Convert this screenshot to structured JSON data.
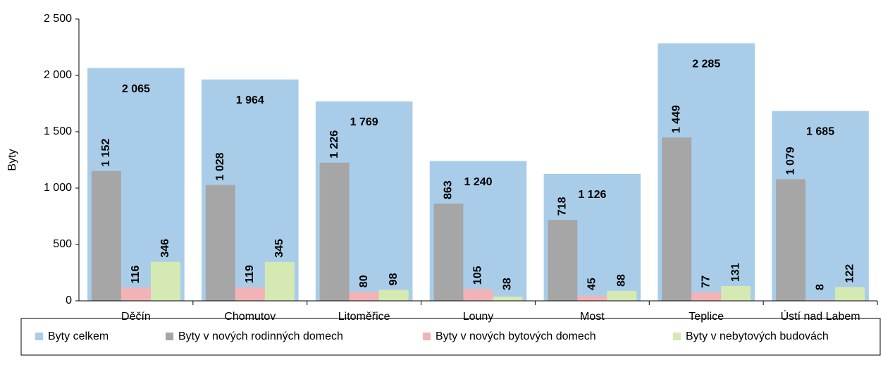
{
  "chart_data": {
    "type": "bar",
    "y_label": "Byty",
    "categories": [
      "Děčín",
      "Chomutov",
      "Litoměřice",
      "Louny",
      "Most",
      "Teplice",
      "Ústí nad Labem"
    ],
    "series": [
      {
        "name": "Byty celkem",
        "color": "#a9cde9",
        "values": [
          2065,
          1964,
          1769,
          1240,
          1126,
          2285,
          1685
        ],
        "value_labels": [
          "2 065",
          "1 964",
          "1 769",
          "1 240",
          "1 126",
          "2 285",
          "1 685"
        ]
      },
      {
        "name": "Byty v nových rodinných domech",
        "color": "#a6a6a6",
        "values": [
          1152,
          1028,
          1226,
          863,
          718,
          1449,
          1079
        ],
        "value_labels": [
          "1 152",
          "1 028",
          "1 226",
          "863",
          "718",
          "1 449",
          "1 079"
        ]
      },
      {
        "name": "Byty v nových bytových domech",
        "color": "#f2b3b6",
        "values": [
          116,
          119,
          80,
          105,
          45,
          77,
          8
        ],
        "value_labels": [
          "116",
          "119",
          "80",
          "105",
          "45",
          "77",
          "8"
        ]
      },
      {
        "name": "Byty v nebytových budovách",
        "color": "#d5e9b3",
        "values": [
          346,
          345,
          98,
          38,
          88,
          131,
          122
        ],
        "value_labels": [
          "346",
          "345",
          "98",
          "38",
          "88",
          "131",
          "122"
        ]
      }
    ],
    "ylim": [
      0,
      2500
    ],
    "yticks": [
      0,
      500,
      {
        "value": 1000,
        "label": "1 000"
      },
      {
        "value": 1500,
        "label": "1 500"
      },
      {
        "value": 2000,
        "label": "2 000"
      },
      {
        "value": 2500,
        "label": "2 500"
      }
    ],
    "legend": "bottom"
  }
}
